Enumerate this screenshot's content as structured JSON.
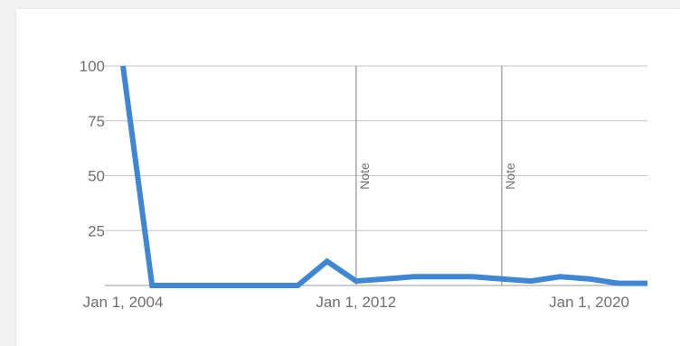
{
  "chart_data": {
    "type": "line",
    "title": "",
    "xlabel": "",
    "ylabel": "",
    "ylim": [
      0,
      100
    ],
    "yticks": [
      "25",
      "50",
      "75",
      "100"
    ],
    "xticks": [
      "Jan 1, 2004",
      "Jan 1, 2012",
      "Jan 1, 2020"
    ],
    "grid": true,
    "legend": "none",
    "line_color": "#3f86d5",
    "series": [
      {
        "x": [
          "2004-01",
          "2005-01",
          "2006-01",
          "2007-01",
          "2008-01",
          "2009-01",
          "2010-01",
          "2011-01",
          "2012-01",
          "2013-01",
          "2014-01",
          "2015-01",
          "2016-01",
          "2017-01",
          "2018-01",
          "2019-01",
          "2020-01",
          "2021-01",
          "2022-01"
        ],
        "values": [
          100,
          0,
          0,
          0,
          0,
          0,
          0,
          11,
          2,
          3,
          4,
          4,
          4,
          3,
          2,
          4,
          3,
          1,
          1
        ]
      }
    ],
    "annotations": [
      {
        "x": "2012-01",
        "label": "Note"
      },
      {
        "x": "2017-01",
        "label": "Note"
      }
    ]
  }
}
